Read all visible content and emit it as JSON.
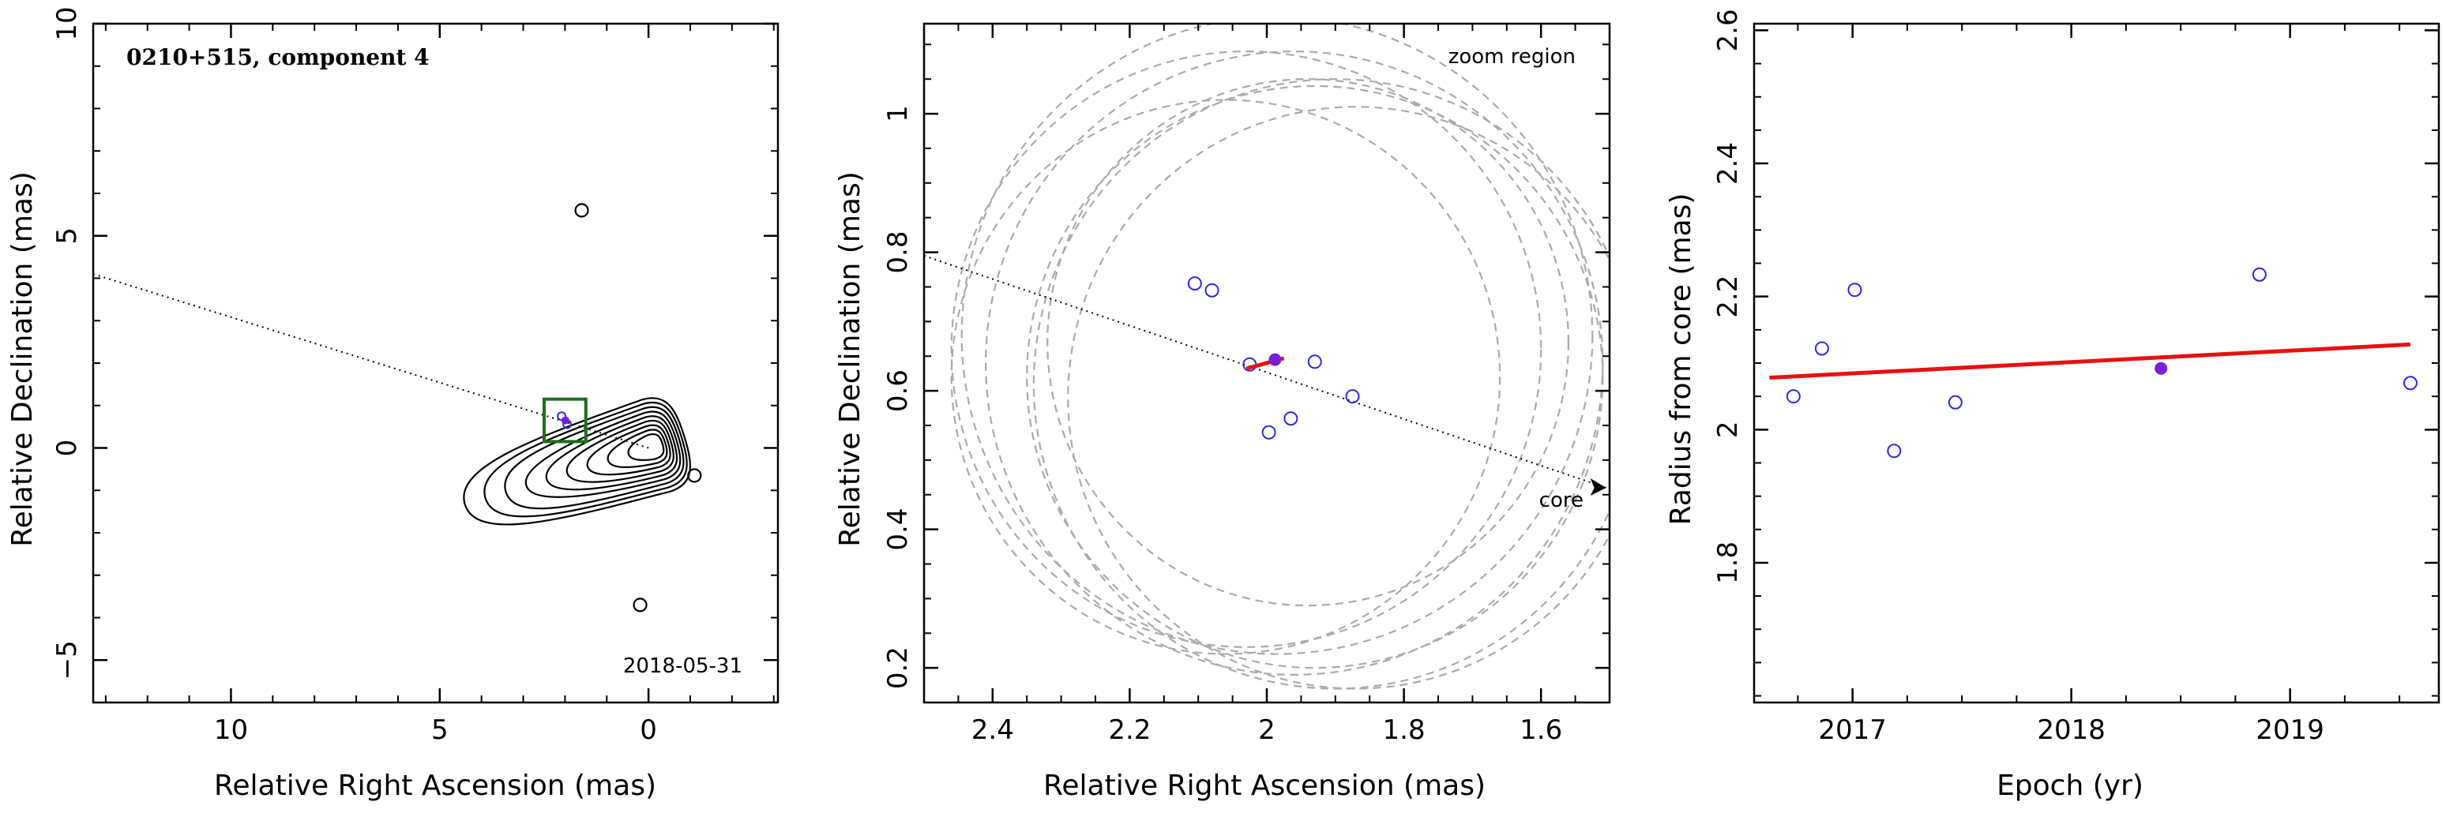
{
  "colors": {
    "frame": "#000000",
    "contour": "#000000",
    "beam_circles": "#aaaaaa",
    "epoch_points": "#2a2ae0",
    "current_epoch_point": "#7a1fd6",
    "fit_line": "#e81010",
    "zoom_box": "#1c6e1c"
  },
  "chart_data": [
    {
      "id": "image",
      "type": "scatter",
      "title": "0210+515, component 4",
      "date_label": "2018-05-31",
      "xlabel": "Relative Right Ascension (mas)",
      "ylabel": "Relative Declination (mas)",
      "xlim": [
        13.3,
        -3.1
      ],
      "ylim": [
        -6.0,
        10.0
      ],
      "xticks": [
        10,
        5,
        0
      ],
      "yticks": [
        -5,
        0,
        5,
        10
      ],
      "x_tick_labels": [
        "10",
        "5",
        "0"
      ],
      "y_tick_labels": [
        "−5",
        "0",
        "5",
        "10"
      ],
      "contour_levels": 9,
      "core": [
        0,
        0
      ],
      "jet_direction_line": [
        [
          13.3,
          4.1
        ],
        [
          0,
          0
        ]
      ],
      "zoom_box": {
        "x": [
          1.5,
          2.5
        ],
        "y": [
          0.15,
          1.15
        ]
      },
      "component_positions": [
        {
          "x": 2.08,
          "y": 0.75,
          "marker": "open"
        },
        {
          "x": 1.95,
          "y": 0.56,
          "marker": "open"
        },
        {
          "x": 1.99,
          "y": 0.65,
          "marker": "filled"
        }
      ],
      "isolated_features": [
        {
          "x": 1.6,
          "y": 5.6
        },
        {
          "x": 0.2,
          "y": -3.7
        },
        {
          "x": -1.1,
          "y": -0.65
        }
      ]
    },
    {
      "id": "zoom",
      "type": "scatter",
      "annotation": "zoom region",
      "core_label": "core",
      "xlabel": "Relative Right Ascension (mas)",
      "ylabel": "Relative Declination (mas)",
      "xlim": [
        2.5,
        1.5
      ],
      "ylim": [
        0.15,
        1.13
      ],
      "xticks": [
        2.4,
        2.2,
        2.0,
        1.8,
        1.6
      ],
      "yticks": [
        0.2,
        0.4,
        0.6,
        0.8,
        1.0
      ],
      "x_tick_labels": [
        "2.4",
        "2.2",
        "2",
        "1.8",
        "1.6"
      ],
      "y_tick_labels": [
        "0.2",
        "0.4",
        "0.6",
        "0.8",
        "1"
      ],
      "jet_direction_line": [
        [
          2.5,
          0.795
        ],
        [
          1.505,
          0.46
        ]
      ],
      "epoch_positions": [
        {
          "x": 2.105,
          "y": 0.755
        },
        {
          "x": 2.08,
          "y": 0.745
        },
        {
          "x": 2.025,
          "y": 0.638
        },
        {
          "x": 1.93,
          "y": 0.642
        },
        {
          "x": 1.875,
          "y": 0.592
        },
        {
          "x": 1.965,
          "y": 0.56
        },
        {
          "x": 1.997,
          "y": 0.54
        }
      ],
      "current_epoch_position": {
        "x": 1.988,
        "y": 0.645
      },
      "fit_track": [
        [
          2.03,
          0.632
        ],
        [
          1.975,
          0.647
        ]
      ],
      "beam_circles": [
        {
          "cx": 1.985,
          "cy": 0.68,
          "r": 0.46
        },
        {
          "cx": 2.03,
          "cy": 0.66,
          "r": 0.43
        },
        {
          "cx": 1.96,
          "cy": 0.64,
          "r": 0.45
        },
        {
          "cx": 1.93,
          "cy": 0.62,
          "r": 0.42
        },
        {
          "cx": 1.9,
          "cy": 0.61,
          "r": 0.44
        },
        {
          "cx": 2.06,
          "cy": 0.62,
          "r": 0.4
        },
        {
          "cx": 1.87,
          "cy": 0.59,
          "r": 0.42
        },
        {
          "cx": 1.94,
          "cy": 0.67,
          "r": 0.38
        }
      ]
    },
    {
      "id": "radius_vs_epoch",
      "type": "scatter",
      "xlabel": "Epoch (yr)",
      "ylabel": "Radius from core (mas)",
      "xlim": [
        2016.55,
        2019.68
      ],
      "ylim": [
        1.59,
        2.61
      ],
      "xticks": [
        2017,
        2018,
        2019
      ],
      "yticks": [
        1.8,
        2.0,
        2.2,
        2.4,
        2.6
      ],
      "x_tick_labels": [
        "2017",
        "2018",
        "2019"
      ],
      "y_tick_labels": [
        "1.8",
        "2",
        "2.2",
        "2.4",
        "2.6"
      ],
      "points": [
        {
          "x": 2016.73,
          "y": 2.05
        },
        {
          "x": 2016.86,
          "y": 2.122
        },
        {
          "x": 2017.01,
          "y": 2.21
        },
        {
          "x": 2017.19,
          "y": 1.968
        },
        {
          "x": 2017.47,
          "y": 2.041
        },
        {
          "x": 2018.86,
          "y": 2.233
        },
        {
          "x": 2019.55,
          "y": 2.07
        }
      ],
      "current_point": {
        "x": 2018.41,
        "y": 2.092
      },
      "fit_line": [
        [
          2016.62,
          2.078
        ],
        [
          2019.55,
          2.128
        ]
      ]
    }
  ]
}
